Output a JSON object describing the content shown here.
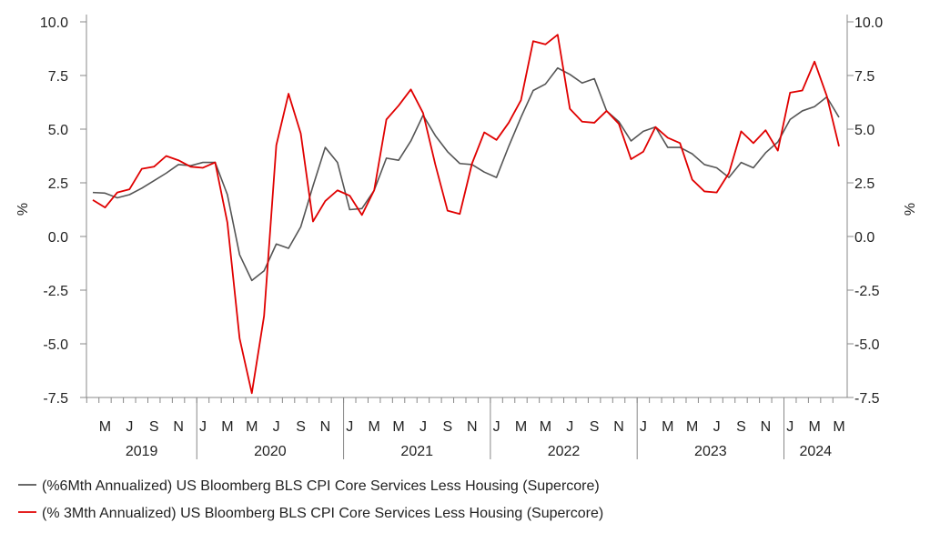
{
  "chart_data": {
    "type": "line",
    "title": "",
    "ylabel_left": "%",
    "ylabel_right": "%",
    "ylim": [
      -7.5,
      10.0
    ],
    "yticks": [
      "10.0",
      "7.5",
      "5.0",
      "2.5",
      "0.0",
      "-2.5",
      "-5.0",
      "-7.5"
    ],
    "x_tick_labels": [
      "M",
      "J",
      "S",
      "N",
      "J",
      "M",
      "M",
      "J",
      "S",
      "N",
      "J",
      "M",
      "M",
      "J",
      "S",
      "N",
      "J",
      "M",
      "M",
      "J",
      "S",
      "N",
      "J",
      "M",
      "M",
      "J",
      "S",
      "N",
      "J",
      "M",
      "M"
    ],
    "year_labels": [
      "2019",
      "2020",
      "2021",
      "2022",
      "2023",
      "2024"
    ],
    "x": [
      "2019-04",
      "2019-05",
      "2019-06",
      "2019-07",
      "2019-08",
      "2019-09",
      "2019-10",
      "2019-11",
      "2019-12",
      "2020-01",
      "2020-02",
      "2020-03",
      "2020-04",
      "2020-05",
      "2020-06",
      "2020-07",
      "2020-08",
      "2020-09",
      "2020-10",
      "2020-11",
      "2020-12",
      "2021-01",
      "2021-02",
      "2021-03",
      "2021-04",
      "2021-05",
      "2021-06",
      "2021-07",
      "2021-08",
      "2021-09",
      "2021-10",
      "2021-11",
      "2021-12",
      "2022-01",
      "2022-02",
      "2022-03",
      "2022-04",
      "2022-05",
      "2022-06",
      "2022-07",
      "2022-08",
      "2022-09",
      "2022-10",
      "2022-11",
      "2022-12",
      "2023-01",
      "2023-02",
      "2023-03",
      "2023-04",
      "2023-05",
      "2023-06",
      "2023-07",
      "2023-08",
      "2023-09",
      "2023-10",
      "2023-11",
      "2023-12",
      "2024-01",
      "2024-02",
      "2024-03",
      "2024-04",
      "2024-05"
    ],
    "series": [
      {
        "name": "(%6Mth Annualized) US Bloomberg BLS CPI Core Services Less Housing (Supercore)",
        "color": "#555555",
        "values": [
          2.05,
          2.02,
          1.8,
          1.95,
          2.25,
          2.6,
          2.95,
          3.35,
          3.3,
          3.45,
          3.45,
          1.95,
          -0.85,
          -2.05,
          -1.6,
          -0.35,
          -0.55,
          0.45,
          2.35,
          4.15,
          3.45,
          1.25,
          1.3,
          2.15,
          3.65,
          3.55,
          4.45,
          5.65,
          4.7,
          3.95,
          3.4,
          3.35,
          3.0,
          2.75,
          4.2,
          5.55,
          6.8,
          7.1,
          7.85,
          7.55,
          7.15,
          7.35,
          5.85,
          5.35,
          4.45,
          4.9,
          5.1,
          4.15,
          4.15,
          3.85,
          3.35,
          3.2,
          2.75,
          3.45,
          3.2,
          3.9,
          4.4,
          5.45,
          5.85,
          6.05,
          6.5,
          5.55
        ]
      },
      {
        "name": "(% 3Mth Annualized) US Bloomberg BLS CPI Core Services Less Housing (Supercore)",
        "color": "#e00000",
        "values": [
          1.7,
          1.35,
          2.05,
          2.2,
          3.15,
          3.25,
          3.75,
          3.55,
          3.25,
          3.2,
          3.45,
          0.65,
          -4.75,
          -7.3,
          -3.7,
          4.25,
          6.65,
          4.8,
          0.7,
          1.65,
          2.15,
          1.9,
          1.0,
          2.15,
          5.45,
          6.1,
          6.85,
          5.75,
          3.35,
          1.2,
          1.05,
          3.4,
          4.85,
          4.5,
          5.3,
          6.35,
          9.1,
          8.95,
          9.4,
          5.95,
          5.35,
          5.3,
          5.85,
          5.25,
          3.6,
          3.95,
          5.1,
          4.6,
          4.35,
          2.65,
          2.1,
          2.05,
          2.95,
          4.9,
          4.35,
          4.95,
          4.0,
          6.7,
          6.8,
          8.15,
          6.55,
          4.2
        ]
      }
    ],
    "grid": false,
    "legend_placement": "bottom-left"
  }
}
